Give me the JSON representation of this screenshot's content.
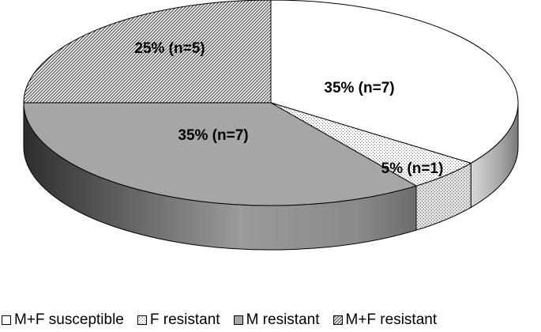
{
  "chart_data": {
    "type": "pie",
    "style": "3d",
    "slices": [
      {
        "name": "M+F susceptible",
        "value": 35,
        "n": 7,
        "label": "35% (n=7)",
        "fill": "white",
        "color": "#ffffff"
      },
      {
        "name": "F resistant",
        "value": 5,
        "n": 1,
        "label": "5% (n=1)",
        "fill": "dots",
        "color": "#ffffff"
      },
      {
        "name": "M resistant",
        "value": 35,
        "n": 7,
        "label": "35% (n=7)",
        "fill": "gray",
        "color": "#a6a6a6"
      },
      {
        "name": "M+F resistant",
        "value": 25,
        "n": 5,
        "label": "25% (n=5)",
        "fill": "diagonal-hatch",
        "color": "#ffffff"
      }
    ],
    "legend_position": "bottom",
    "title": ""
  }
}
